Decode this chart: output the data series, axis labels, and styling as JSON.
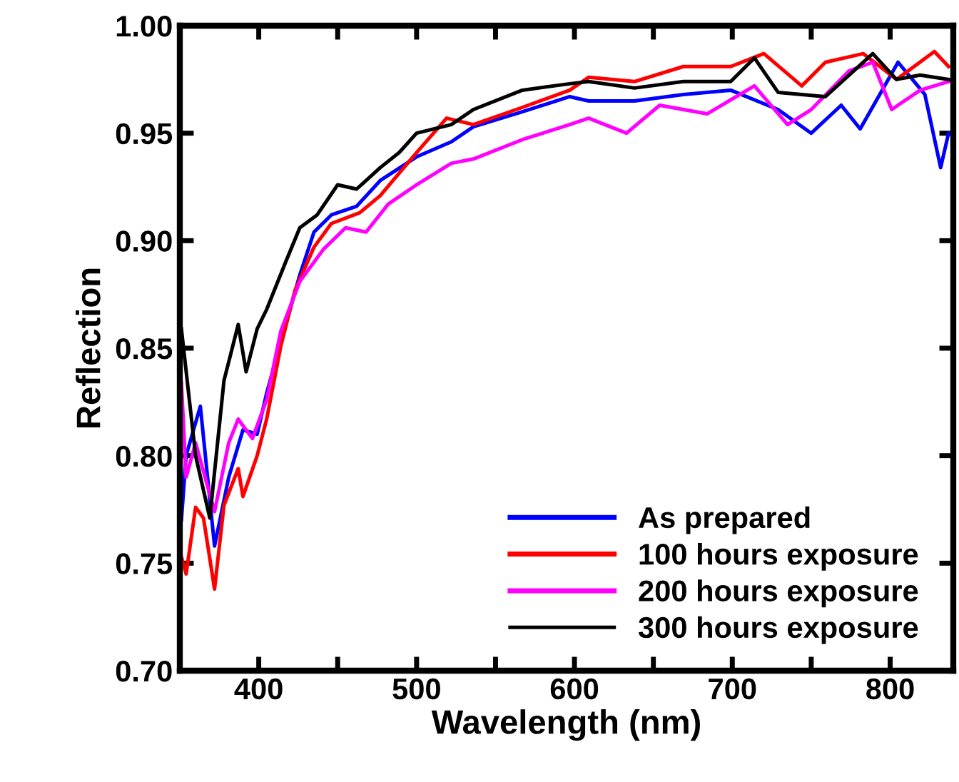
{
  "chart_data": {
    "type": "line",
    "xlabel": "Wavelength (nm)",
    "ylabel": "Reflection",
    "xlim": [
      350,
      840
    ],
    "ylim": [
      0.7,
      1.0
    ],
    "xticks": [
      400,
      {
        "value": 450,
        "label": null
      },
      500,
      {
        "value": 550,
        "label": null
      },
      600,
      {
        "value": 650,
        "label": null
      },
      700,
      {
        "value": 750,
        "label": null
      },
      800
    ],
    "yticks": [
      {
        "value": 0.7,
        "label": "0.70"
      },
      0.75,
      {
        "value": 0.8,
        "label": "0.80"
      },
      0.85,
      {
        "value": 0.9,
        "label": "0.90"
      },
      0.95,
      {
        "value": 1.0,
        "label": "1.00"
      }
    ],
    "grid": false,
    "legend": "bottom right",
    "line_style": "solid",
    "marker": "none",
    "series": [
      {
        "name": "As prepared",
        "color": "#0000ff",
        "x": [
          351,
          354,
          363,
          372,
          381,
          390,
          399,
          405,
          414,
          426,
          435,
          446,
          462,
          477,
          500,
          522,
          536,
          567,
          597,
          609,
          638,
          669,
          699,
          729,
          750,
          769,
          781,
          805,
          822,
          832,
          837
        ],
        "values": [
          0.77,
          0.8,
          0.823,
          0.758,
          0.79,
          0.812,
          0.81,
          0.829,
          0.853,
          0.884,
          0.904,
          0.912,
          0.916,
          0.928,
          0.939,
          0.946,
          0.953,
          0.96,
          0.967,
          0.965,
          0.965,
          0.968,
          0.97,
          0.961,
          0.95,
          0.963,
          0.952,
          0.983,
          0.968,
          0.934,
          0.95
        ]
      },
      {
        "name": "100 hours exposure",
        "color": "#ff0000",
        "x": [
          351,
          354,
          360,
          365,
          372,
          378,
          387,
          390,
          399,
          405,
          414,
          423,
          435,
          446,
          464,
          477,
          500,
          519,
          536,
          567,
          597,
          609,
          638,
          669,
          699,
          720,
          744,
          759,
          783,
          804,
          828,
          837
        ],
        "values": [
          0.753,
          0.745,
          0.776,
          0.771,
          0.738,
          0.777,
          0.794,
          0.781,
          0.8,
          0.817,
          0.851,
          0.877,
          0.897,
          0.908,
          0.913,
          0.921,
          0.941,
          0.957,
          0.954,
          0.962,
          0.97,
          0.976,
          0.974,
          0.981,
          0.981,
          0.987,
          0.972,
          0.983,
          0.987,
          0.975,
          0.988,
          0.981
        ]
      },
      {
        "name": "200 hours exposure",
        "color": "#ff00ff",
        "x": [
          351,
          354,
          360,
          372,
          381,
          387,
          396,
          405,
          414,
          426,
          441,
          455,
          468,
          482,
          500,
          522,
          536,
          567,
          597,
          609,
          633,
          654,
          684,
          714,
          735,
          750,
          774,
          789,
          801,
          819,
          837
        ],
        "values": [
          0.834,
          0.79,
          0.806,
          0.774,
          0.806,
          0.817,
          0.808,
          0.826,
          0.858,
          0.881,
          0.896,
          0.906,
          0.904,
          0.917,
          0.926,
          0.936,
          0.938,
          0.947,
          0.954,
          0.957,
          0.95,
          0.963,
          0.959,
          0.972,
          0.954,
          0.961,
          0.979,
          0.983,
          0.961,
          0.97,
          0.974
        ]
      },
      {
        "name": "300 hours exposure",
        "color": "#000000",
        "x": [
          351,
          360,
          369,
          378,
          387,
          392,
          399,
          405,
          417,
          426,
          437,
          450,
          462,
          477,
          489,
          500,
          522,
          536,
          567,
          597,
          609,
          638,
          669,
          699,
          714,
          729,
          759,
          789,
          804,
          819,
          837
        ],
        "values": [
          0.859,
          0.8,
          0.771,
          0.835,
          0.861,
          0.839,
          0.859,
          0.868,
          0.89,
          0.906,
          0.912,
          0.926,
          0.924,
          0.934,
          0.941,
          0.95,
          0.954,
          0.961,
          0.97,
          0.973,
          0.974,
          0.971,
          0.974,
          0.974,
          0.985,
          0.969,
          0.967,
          0.987,
          0.975,
          0.977,
          0.975
        ]
      }
    ]
  }
}
